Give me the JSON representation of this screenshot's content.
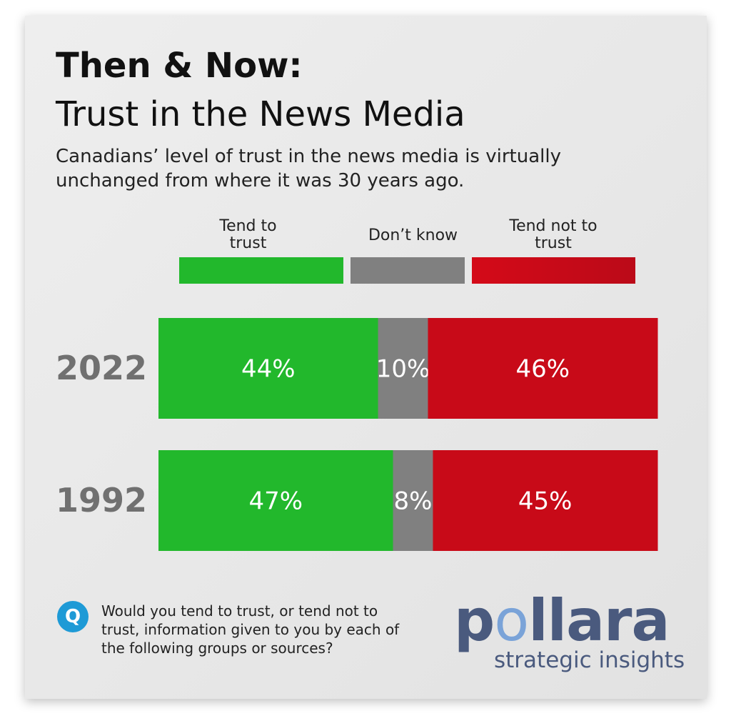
{
  "title_line1": "Then & Now:",
  "title_line2": "Trust in the News Media",
  "subtitle": "Canadians’ level of trust in the news media is virtually unchanged from where it was 30 years ago.",
  "legend": [
    {
      "label": "Tend to trust",
      "color": "#22b82c"
    },
    {
      "label": "Don’t know",
      "color": "#808080"
    },
    {
      "label": "Tend not to trust",
      "color": "#c80a18"
    }
  ],
  "chart_data": {
    "type": "bar",
    "stacked": true,
    "orientation": "horizontal",
    "categories": [
      "2022",
      "1992"
    ],
    "series": [
      {
        "name": "Tend to trust",
        "values": [
          44,
          47
        ],
        "labels": [
          "44%",
          "47%"
        ]
      },
      {
        "name": "Don’t know",
        "values": [
          10,
          8
        ],
        "labels": [
          "10%",
          "8%"
        ]
      },
      {
        "name": "Tend not to trust",
        "values": [
          46,
          45
        ],
        "labels": [
          "46%",
          "45%"
        ]
      }
    ],
    "xlim": [
      0,
      100
    ]
  },
  "question_icon": "Q",
  "question": "Would you tend to trust, or tend not to trust, information given to you by each of the following groups or sources?",
  "logo": {
    "p": "p",
    "o": "o",
    "rest": "llara",
    "tagline": "strategic insights"
  }
}
